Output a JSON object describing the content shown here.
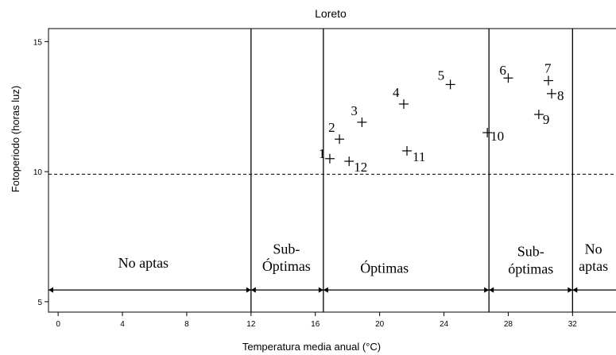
{
  "chart_data": {
    "type": "scatter",
    "title": "Loreto",
    "xlabel": "Temperatura media anual (°C)",
    "ylabel": "Fotoperiodo (horas luz)",
    "xlim": [
      -0.6,
      35
    ],
    "ylim": [
      4.6,
      15.5
    ],
    "xticks": [
      0,
      4,
      8,
      12,
      16,
      20,
      24,
      28,
      32
    ],
    "yticks": [
      5,
      10,
      15
    ],
    "grid": false,
    "threshold_y": 9.9,
    "zone_boundaries": [
      12,
      16.5,
      26.8,
      32
    ],
    "zones": [
      {
        "label": "No aptas",
        "x": 5.3,
        "y": 6.5
      },
      {
        "label": "Sub-\nÓptimas",
        "x": 14.2,
        "y": 6.6
      },
      {
        "label": "Óptimas",
        "x": 20.3,
        "y": 6.3
      },
      {
        "label": "Sub-\nóptimas",
        "x": 29.4,
        "y": 6.5
      },
      {
        "label": "No\naptas",
        "x": 33.3,
        "y": 6.6
      }
    ],
    "points": [
      {
        "label": "1",
        "x": 16.9,
        "y": 10.5
      },
      {
        "label": "2",
        "x": 17.5,
        "y": 11.25
      },
      {
        "label": "3",
        "x": 18.9,
        "y": 11.9
      },
      {
        "label": "4",
        "x": 21.5,
        "y": 12.6
      },
      {
        "label": "5",
        "x": 24.4,
        "y": 13.35
      },
      {
        "label": "6",
        "x": 28.0,
        "y": 13.6
      },
      {
        "label": "7",
        "x": 30.5,
        "y": 13.5
      },
      {
        "label": "8",
        "x": 30.7,
        "y": 13.0
      },
      {
        "label": "9",
        "x": 29.9,
        "y": 12.2
      },
      {
        "label": "10",
        "x": 26.7,
        "y": 11.5
      },
      {
        "label": "11",
        "x": 21.7,
        "y": 10.8
      },
      {
        "label": "12",
        "x": 18.1,
        "y": 10.4
      }
    ]
  }
}
